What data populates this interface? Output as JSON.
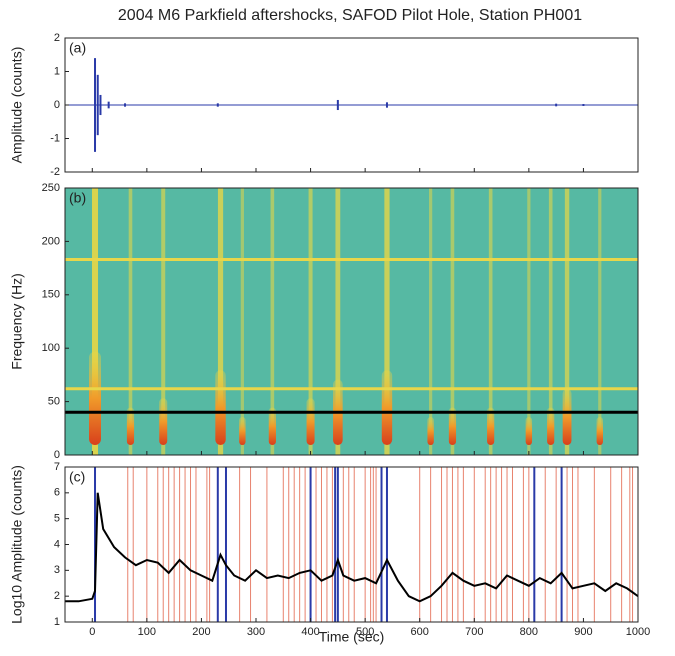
{
  "chart_data": [
    {
      "type": "stem",
      "title": "2004 M6 Parkfield aftershocks, SAFOD Pilot Hole, Station PH001",
      "panel_label": "(a)",
      "ylabel": "Amplitude (counts)",
      "color": "#2a3aa8",
      "x": [
        5,
        10,
        15,
        30,
        60,
        230,
        450,
        540,
        850,
        900
      ],
      "values": [
        1.4,
        0.9,
        0.3,
        0.1,
        0.05,
        0.05,
        0.15,
        0.08,
        0.04,
        0.03
      ],
      "xlim": [
        -50,
        1000
      ],
      "xticks": [
        0,
        100,
        200,
        300,
        400,
        500,
        600,
        700,
        800,
        900,
        1000
      ],
      "ylim": [
        -2,
        2
      ],
      "yticks": [
        -2,
        -1,
        0,
        1,
        2
      ]
    },
    {
      "type": "spectrogram",
      "panel_label": "(b)",
      "ylabel": "Frequency (Hz)",
      "background": "#56b9a3",
      "x": [
        5,
        70,
        130,
        235,
        275,
        330,
        400,
        450,
        540,
        620,
        660,
        730,
        800,
        840,
        870,
        930
      ],
      "values": [
        1,
        0.4,
        0.5,
        0.8,
        0.3,
        0.4,
        0.5,
        0.7,
        0.8,
        0.3,
        0.4,
        0.4,
        0.3,
        0.4,
        0.6,
        0.3
      ],
      "hlines": [
        {
          "value": 40,
          "color": "#000000"
        },
        {
          "value": 62,
          "color": "#e8d64a"
        },
        {
          "value": 183,
          "color": "#e8d64a"
        }
      ],
      "xlim": [
        -50,
        1000
      ],
      "xticks": [
        0,
        100,
        200,
        300,
        400,
        500,
        600,
        700,
        800,
        900,
        1000
      ],
      "ylim": [
        0,
        250
      ],
      "yticks": [
        0,
        50,
        100,
        150,
        200,
        250
      ]
    },
    {
      "type": "line",
      "panel_label": "(c)",
      "ylabel": "Log10 Amplitude (counts)",
      "xlabel": "Time (sec)",
      "color": "#000000",
      "x": [
        -50,
        -25,
        0,
        5,
        10,
        20,
        40,
        60,
        80,
        100,
        120,
        140,
        160,
        180,
        200,
        220,
        235,
        245,
        260,
        280,
        300,
        320,
        340,
        360,
        380,
        400,
        420,
        440,
        450,
        460,
        480,
        500,
        520,
        540,
        560,
        580,
        600,
        620,
        640,
        660,
        680,
        700,
        720,
        740,
        760,
        780,
        800,
        820,
        840,
        860,
        880,
        900,
        920,
        940,
        960,
        980,
        1000
      ],
      "values": [
        1.8,
        1.8,
        1.9,
        2.2,
        6.0,
        4.6,
        3.9,
        3.5,
        3.2,
        3.4,
        3.3,
        2.9,
        3.4,
        3.0,
        2.8,
        2.6,
        3.6,
        3.2,
        2.8,
        2.6,
        3.0,
        2.7,
        2.8,
        2.7,
        2.9,
        3.0,
        2.6,
        2.8,
        3.4,
        2.8,
        2.6,
        2.7,
        2.5,
        3.4,
        2.6,
        2.0,
        1.8,
        2.0,
        2.4,
        2.9,
        2.6,
        2.4,
        2.5,
        2.3,
        2.8,
        2.6,
        2.4,
        2.7,
        2.5,
        2.9,
        2.3,
        2.4,
        2.5,
        2.2,
        2.5,
        2.3,
        2.0
      ],
      "red_lines": [
        65,
        75,
        100,
        120,
        130,
        140,
        150,
        160,
        170,
        180,
        190,
        210,
        215,
        270,
        290,
        320,
        350,
        360,
        370,
        380,
        390,
        410,
        420,
        430,
        440,
        460,
        470,
        480,
        500,
        510,
        515,
        520,
        600,
        620,
        640,
        650,
        660,
        670,
        680,
        700,
        720,
        730,
        740,
        750,
        760,
        770,
        790,
        800,
        830,
        850,
        870,
        880,
        890,
        920,
        950,
        970,
        985,
        990
      ],
      "red_color": "#e8826e",
      "blue_lines": [
        5,
        230,
        245,
        400,
        445,
        450,
        530,
        540,
        810,
        860
      ],
      "blue_color": "#2a3aa8",
      "xlim": [
        -50,
        1000
      ],
      "xticks": [
        0,
        100,
        200,
        300,
        400,
        500,
        600,
        700,
        800,
        900,
        1000
      ],
      "ylim": [
        1,
        7
      ],
      "yticks": [
        1,
        2,
        3,
        4,
        5,
        6,
        7
      ]
    }
  ]
}
